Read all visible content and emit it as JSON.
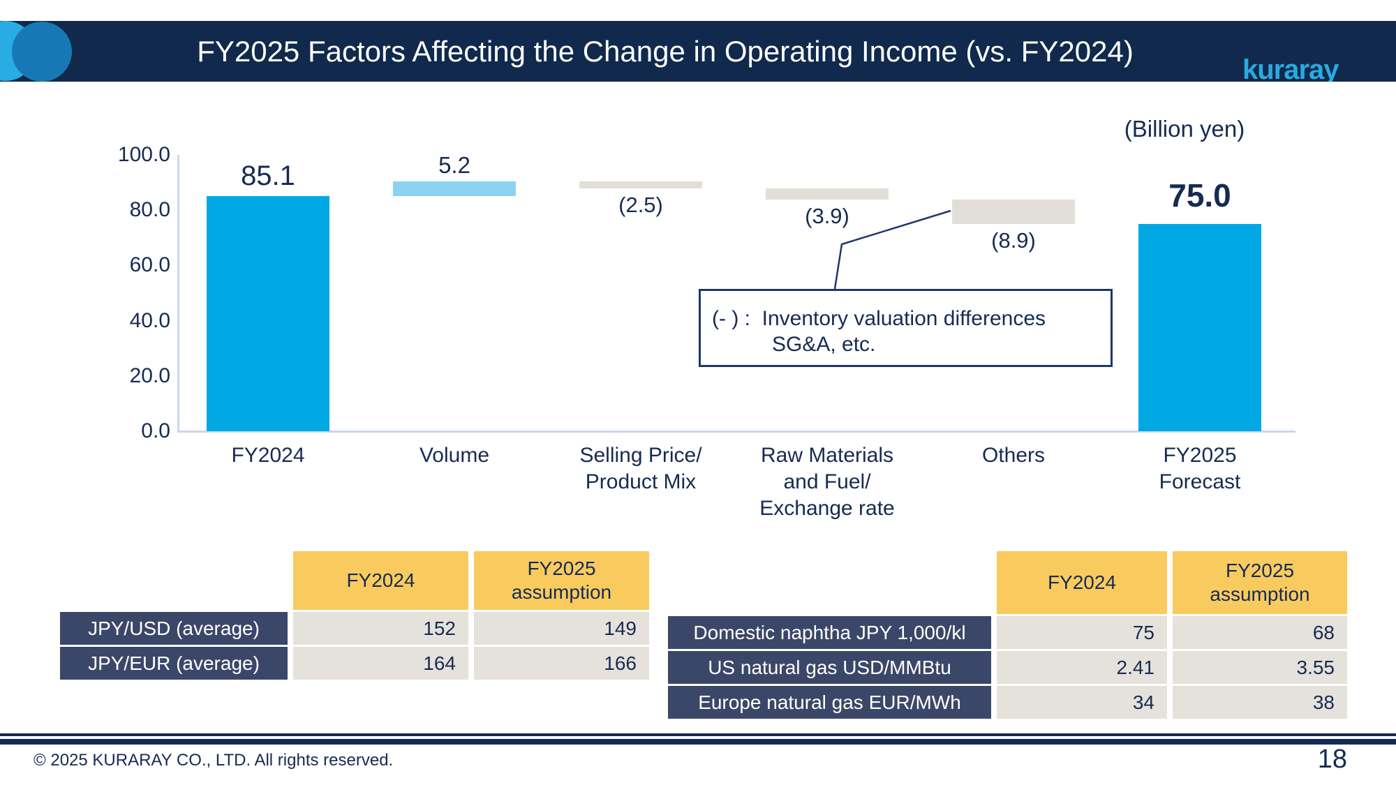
{
  "header": {
    "title": "FY2025 Factors Affecting the Change in Operating Income (vs. FY2024)",
    "logo_text": "kuraray"
  },
  "chart": {
    "unit_label": "(Billion yen)",
    "callout": {
      "line1": "(- ) :  Inventory valuation differences",
      "line2": "SG&A, etc."
    }
  },
  "chart_data": {
    "type": "bar",
    "subtype": "waterfall",
    "title": "FY2025 Factors Affecting the Change in Operating Income (vs. FY2024)",
    "unit": "Billion yen",
    "ylim": [
      0,
      100
    ],
    "ytick_step": 20,
    "grid": false,
    "legend": "none",
    "categories": [
      "FY2024",
      "Volume",
      "Selling Price/ Product Mix",
      "Raw Materials and Fuel/ Exchange rate",
      "Others",
      "FY2025 Forecast"
    ],
    "values": [
      85.1,
      5.2,
      -2.5,
      -3.9,
      -8.9,
      75.0
    ],
    "items": [
      {
        "id": "fy2024",
        "category_lines": [
          "FY2024"
        ],
        "value": 85.1,
        "display": "85.1",
        "kind": "total",
        "bold": false
      },
      {
        "id": "volume",
        "category_lines": [
          "Volume"
        ],
        "value": 5.2,
        "display": "5.2",
        "kind": "increase",
        "bold": false
      },
      {
        "id": "selling-price-product-mix",
        "category_lines": [
          "Selling Price/",
          "Product Mix"
        ],
        "value": -2.5,
        "display": "(2.5)",
        "kind": "decrease",
        "bold": false
      },
      {
        "id": "raw-materials-fuel-exchange-rate",
        "category_lines": [
          "Raw Materials",
          "and Fuel/",
          "Exchange rate"
        ],
        "value": -3.9,
        "display": "(3.9)",
        "kind": "decrease",
        "bold": false
      },
      {
        "id": "others",
        "category_lines": [
          "Others"
        ],
        "value": -8.9,
        "display": "(8.9)",
        "kind": "decrease",
        "bold": false
      },
      {
        "id": "fy2025-forecast",
        "category_lines": [
          "FY2025",
          "Forecast"
        ],
        "value": 75.0,
        "display": "75.0",
        "kind": "total",
        "bold": true
      }
    ],
    "annotation": "(- ) :  Inventory valuation differences SG&A, etc."
  },
  "tables": {
    "left": {
      "col_headers": [
        "FY2024",
        "FY2025\nassumption"
      ],
      "rows": [
        {
          "label": "JPY/USD (average)",
          "values": [
            "152",
            "149"
          ]
        },
        {
          "label": "JPY/EUR (average)",
          "values": [
            "164",
            "166"
          ]
        }
      ]
    },
    "right": {
      "col_headers": [
        "FY2024",
        "FY2025\nassumption"
      ],
      "rows": [
        {
          "label": "Domestic naphtha JPY 1,000/kl",
          "values": [
            "75",
            "68"
          ]
        },
        {
          "label": "US natural gas USD/MMBtu",
          "values": [
            "2.41",
            "3.55"
          ]
        },
        {
          "label": "Europe natural gas EUR/MWh",
          "values": [
            "34",
            "38"
          ]
        }
      ]
    }
  },
  "footer": {
    "copyright": "© 2025 KURARAY CO., LTD. All rights reserved.",
    "page_number": "18"
  },
  "colors": {
    "total": "#00A9E4",
    "increase": "#8CD3F2",
    "decrease": "#E2DFD8",
    "header_bar_navy": "#10294C",
    "logo_cyan": "#2AA9E0",
    "circle_cyan": "#29ABE3",
    "circle_blue": "#1878B6",
    "table_header_yellow": "#F9CB5F",
    "table_label_navy": "#3B4768",
    "table_cell_gray": "#E5E2DC",
    "text_navy": "#162B52",
    "axis_line": "#CBD6EA"
  }
}
